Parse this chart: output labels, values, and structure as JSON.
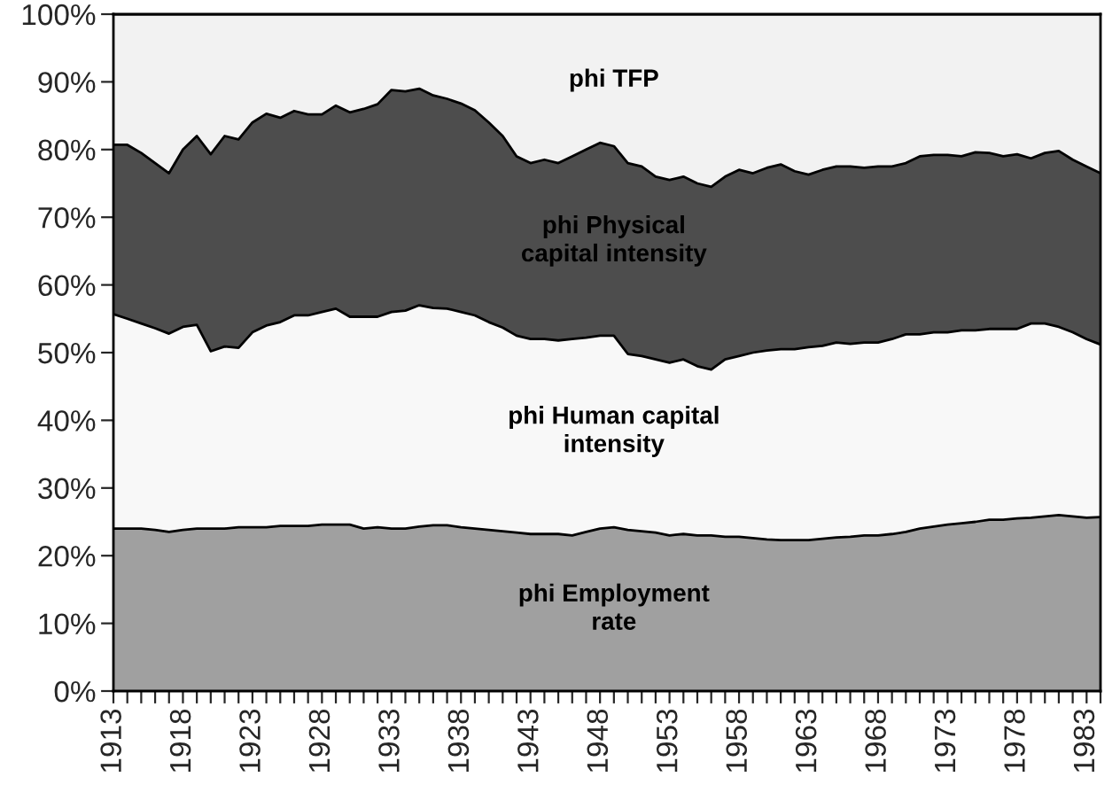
{
  "chart_data": {
    "type": "area",
    "stacked": true,
    "categories": [
      "1913",
      null,
      null,
      null,
      null,
      "1918",
      null,
      null,
      null,
      null,
      "1923",
      null,
      null,
      null,
      null,
      "1928",
      null,
      null,
      null,
      null,
      "1933",
      null,
      null,
      null,
      null,
      "1938",
      null,
      null,
      null,
      null,
      "1943",
      null,
      null,
      null,
      null,
      "1948",
      null,
      null,
      null,
      null,
      "1953",
      null,
      null,
      null,
      null,
      "1958",
      null,
      null,
      null,
      null,
      "1963",
      null,
      null,
      null,
      null,
      "1968",
      null,
      null,
      null,
      null,
      "1973",
      null,
      null,
      null,
      null,
      "1978",
      null,
      null,
      null,
      null,
      "1983",
      null
    ],
    "series": [
      {
        "name": "phi Employment\nrate",
        "color": "#a0a0a0",
        "values": [
          24,
          24,
          24,
          23.8,
          23.5,
          23.8,
          24,
          24,
          24,
          24.2,
          24.2,
          24.2,
          24.4,
          24.4,
          24.4,
          24.6,
          24.6,
          24.6,
          24,
          24.2,
          24,
          24,
          24.3,
          24.5,
          24.5,
          24.2,
          24,
          23.8,
          23.6,
          23.4,
          23.2,
          23.2,
          23.2,
          23,
          23.5,
          24,
          24.2,
          23.8,
          23.6,
          23.4,
          23,
          23.2,
          23,
          23,
          22.8,
          22.8,
          22.6,
          22.4,
          22.3,
          22.3,
          22.3,
          22.5,
          22.7,
          22.8,
          23,
          23,
          23.2,
          23.5,
          24,
          24.3,
          24.6,
          24.8,
          25,
          25.3,
          25.3,
          25.5,
          25.6,
          25.8,
          26,
          25.8,
          25.6,
          25.7
        ]
      },
      {
        "name": "phi Human capital\nintensity",
        "color": "#f8f8f8",
        "values": [
          31.7,
          31,
          30.3,
          29.8,
          29.3,
          30,
          30.1,
          26.2,
          26.9,
          26.5,
          28.8,
          29.8,
          30.1,
          31.1,
          31.1,
          31.4,
          31.9,
          30.7,
          31.3,
          31.1,
          32,
          32.2,
          32.7,
          32.1,
          32,
          31.8,
          31.5,
          30.7,
          30.1,
          29.1,
          28.8,
          28.8,
          28.6,
          29,
          28.7,
          28.5,
          28.3,
          26,
          25.9,
          25.6,
          25.5,
          25.8,
          25,
          24.5,
          26.2,
          26.7,
          27.4,
          27.9,
          28.2,
          28.2,
          28.5,
          28.5,
          28.8,
          28.5,
          28.5,
          28.5,
          28.8,
          29.2,
          28.7,
          28.7,
          28.4,
          28.5,
          28.3,
          28.2,
          28.2,
          28,
          28.7,
          28.5,
          27.8,
          27.2,
          26.4,
          25.5
        ]
      },
      {
        "name": "phi Physical\ncapital intensity",
        "color": "#4d4d4d",
        "values": [
          25,
          25.7,
          25.2,
          24.4,
          23.7,
          26.2,
          27.9,
          29.1,
          31.1,
          30.8,
          31,
          31.3,
          30.2,
          30.2,
          29.7,
          29.2,
          30,
          30.2,
          30.7,
          31.4,
          32.8,
          32.4,
          32,
          31.4,
          31,
          30.8,
          30.3,
          29.5,
          28.3,
          26.5,
          26,
          26.5,
          26.2,
          27,
          27.8,
          28.5,
          28,
          28.2,
          28,
          27,
          27,
          27,
          27,
          27,
          27,
          27.5,
          26.5,
          27,
          27.3,
          26.3,
          25.5,
          26,
          26,
          26.2,
          25.8,
          26,
          25.5,
          25.3,
          26.3,
          26.2,
          26.2,
          25.7,
          26.3,
          26,
          25.5,
          25.8,
          24.4,
          25.2,
          26,
          25.5,
          25.5,
          25.3
        ]
      },
      {
        "name": "phi TFP",
        "color": "#f2f2f2",
        "values": [
          19.3,
          19.3,
          20.5,
          22,
          23.5,
          20,
          18,
          20.7,
          18,
          18.5,
          16,
          14.7,
          15.3,
          14.3,
          14.8,
          14.8,
          13.5,
          14.5,
          14,
          13.3,
          11.2,
          11.4,
          11,
          12,
          12.5,
          13.2,
          14.2,
          16,
          18,
          21,
          22,
          21.5,
          22,
          21,
          20,
          19,
          19.5,
          22,
          22.5,
          24,
          24.5,
          24,
          25,
          25.5,
          24,
          23,
          23.5,
          22.7,
          22.2,
          23.2,
          23.7,
          23,
          22.5,
          22.5,
          22.7,
          22.5,
          22.5,
          22,
          21,
          20.8,
          20.8,
          21,
          20.4,
          20.5,
          21,
          20.7,
          21.3,
          20.5,
          20.2,
          21.5,
          22.5,
          23.5
        ]
      }
    ],
    "ylim": [
      0,
      100
    ],
    "yticks": [
      {
        "value": 0,
        "label": "0%"
      },
      {
        "value": 10,
        "label": "10%"
      },
      {
        "value": 20,
        "label": "20%"
      },
      {
        "value": 30,
        "label": "30%"
      },
      {
        "value": 40,
        "label": "40%"
      },
      {
        "value": 50,
        "label": "50%"
      },
      {
        "value": 60,
        "label": "60%"
      },
      {
        "value": 70,
        "label": "70%"
      },
      {
        "value": 80,
        "label": "80%"
      },
      {
        "value": 90,
        "label": "90%"
      },
      {
        "value": 100,
        "label": "100%"
      }
    ],
    "legend": false
  }
}
